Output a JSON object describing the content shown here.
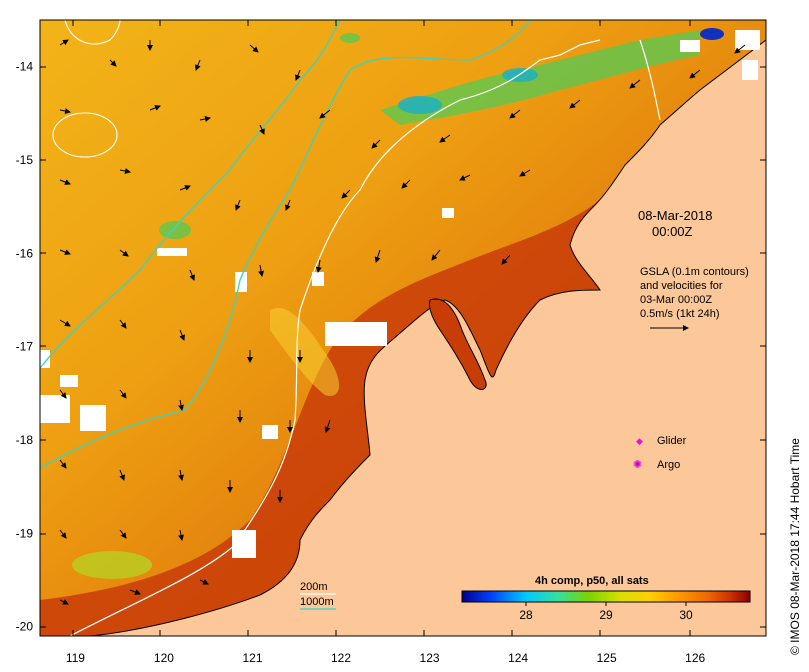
{
  "header": {
    "date": "08-Mar-2018",
    "time": "00:00Z"
  },
  "side_title": "IMOS 08-Mar-2018 17:44 Hobart Time",
  "copyright_symbol": "©",
  "gsla_note": {
    "line1": "GSLA (0.1m contours)",
    "line2": "and velocities for",
    "line3": "03-Mar 00:00Z",
    "line4": "0.5m/s (1kt 24h)"
  },
  "legend": {
    "glider": "Glider",
    "argo": "Argo",
    "glider_color": "#ff00ff",
    "argo_color": "#d000d0"
  },
  "isobaths": {
    "label_200": "200m",
    "label_1000": "1000m",
    "color_200": "#ffffff",
    "color_1000": "#33d6c8"
  },
  "colorbar": {
    "title": "4h comp, p50, all sats",
    "ticks": [
      "28",
      "29",
      "30"
    ],
    "tick_values": [
      28,
      29,
      30
    ],
    "range": [
      27.2,
      30.8
    ],
    "colors": [
      "#00008b",
      "#0040ff",
      "#00c8ff",
      "#33e0a0",
      "#7ad400",
      "#d8e000",
      "#ffd000",
      "#ff9900",
      "#ee6a00",
      "#cc3300",
      "#8b0000"
    ]
  },
  "axes": {
    "lon_ticks": [
      "119",
      "120",
      "121",
      "122",
      "123",
      "124",
      "125",
      "126"
    ],
    "lon_values": [
      119,
      120,
      121,
      122,
      123,
      124,
      125,
      126
    ],
    "lon_range": [
      118.6,
      126.8
    ],
    "lat_ticks": [
      "-14",
      "-15",
      "-16",
      "-17",
      "-18",
      "-19",
      "-20"
    ],
    "lat_values": [
      -14,
      -15,
      -16,
      -17,
      -18,
      -19,
      -20
    ],
    "lat_range": [
      -20.1,
      -13.5
    ]
  },
  "colors": {
    "land": "#fcc89a",
    "sea_base": "#ee9a10",
    "warm": "#c83c08",
    "cloud": "#ffffff",
    "coast": "#000000"
  }
}
